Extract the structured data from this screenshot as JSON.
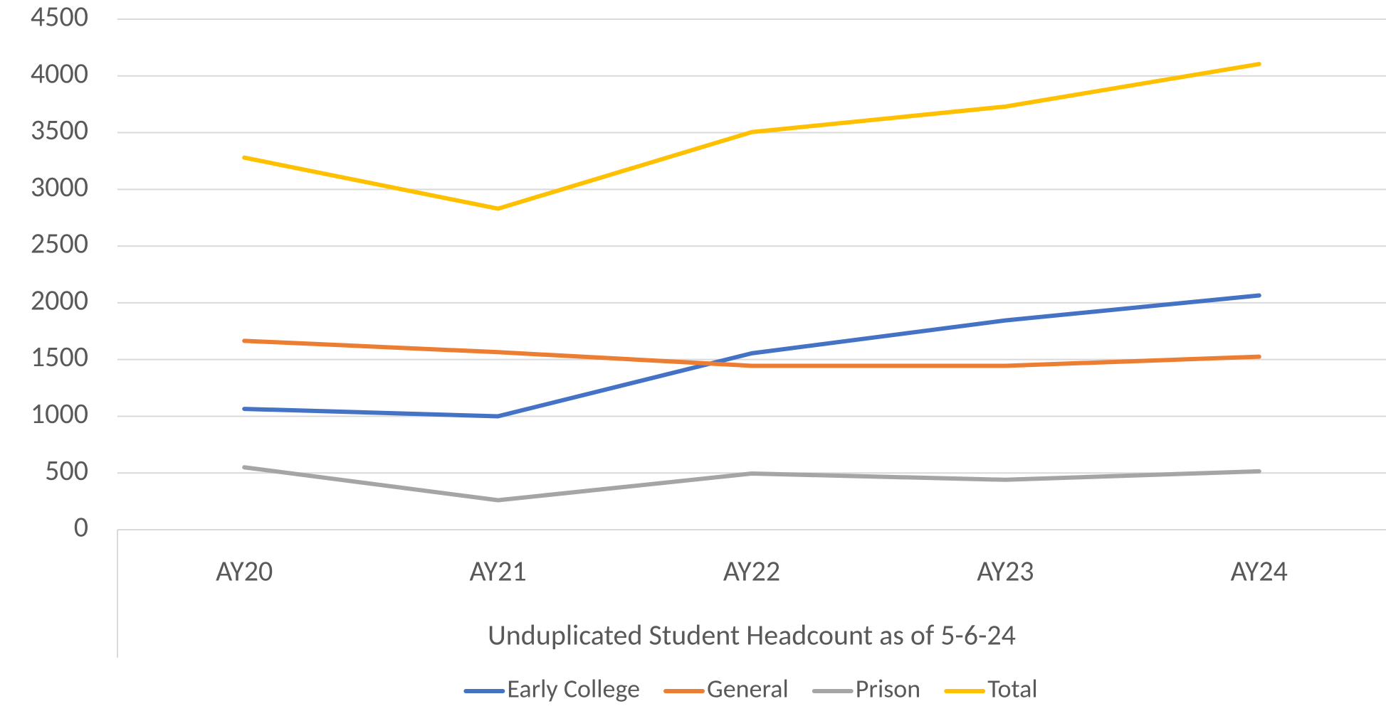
{
  "chart_data": {
    "type": "line",
    "xlabel": "Unduplicated Student Headcount as of 5-6-24",
    "categories": [
      "AY20",
      "AY21",
      "AY22",
      "AY23",
      "AY24"
    ],
    "series": [
      {
        "name": "Early College",
        "color": "#4472c4",
        "values": [
          1065,
          1000,
          1555,
          1845,
          2065
        ]
      },
      {
        "name": "General",
        "color": "#ed7d31",
        "values": [
          1665,
          1565,
          1445,
          1445,
          1525
        ]
      },
      {
        "name": "Prison",
        "color": "#a5a5a5",
        "values": [
          550,
          260,
          495,
          440,
          515
        ]
      },
      {
        "name": "Total",
        "color": "#ffc000",
        "values": [
          3280,
          2830,
          3505,
          3730,
          4105
        ]
      }
    ],
    "ylim": [
      0,
      4500
    ],
    "yticks": [
      0,
      500,
      1000,
      1500,
      2000,
      2500,
      3000,
      3500,
      4000,
      4500
    ],
    "grid": true,
    "legend": "bottom"
  }
}
